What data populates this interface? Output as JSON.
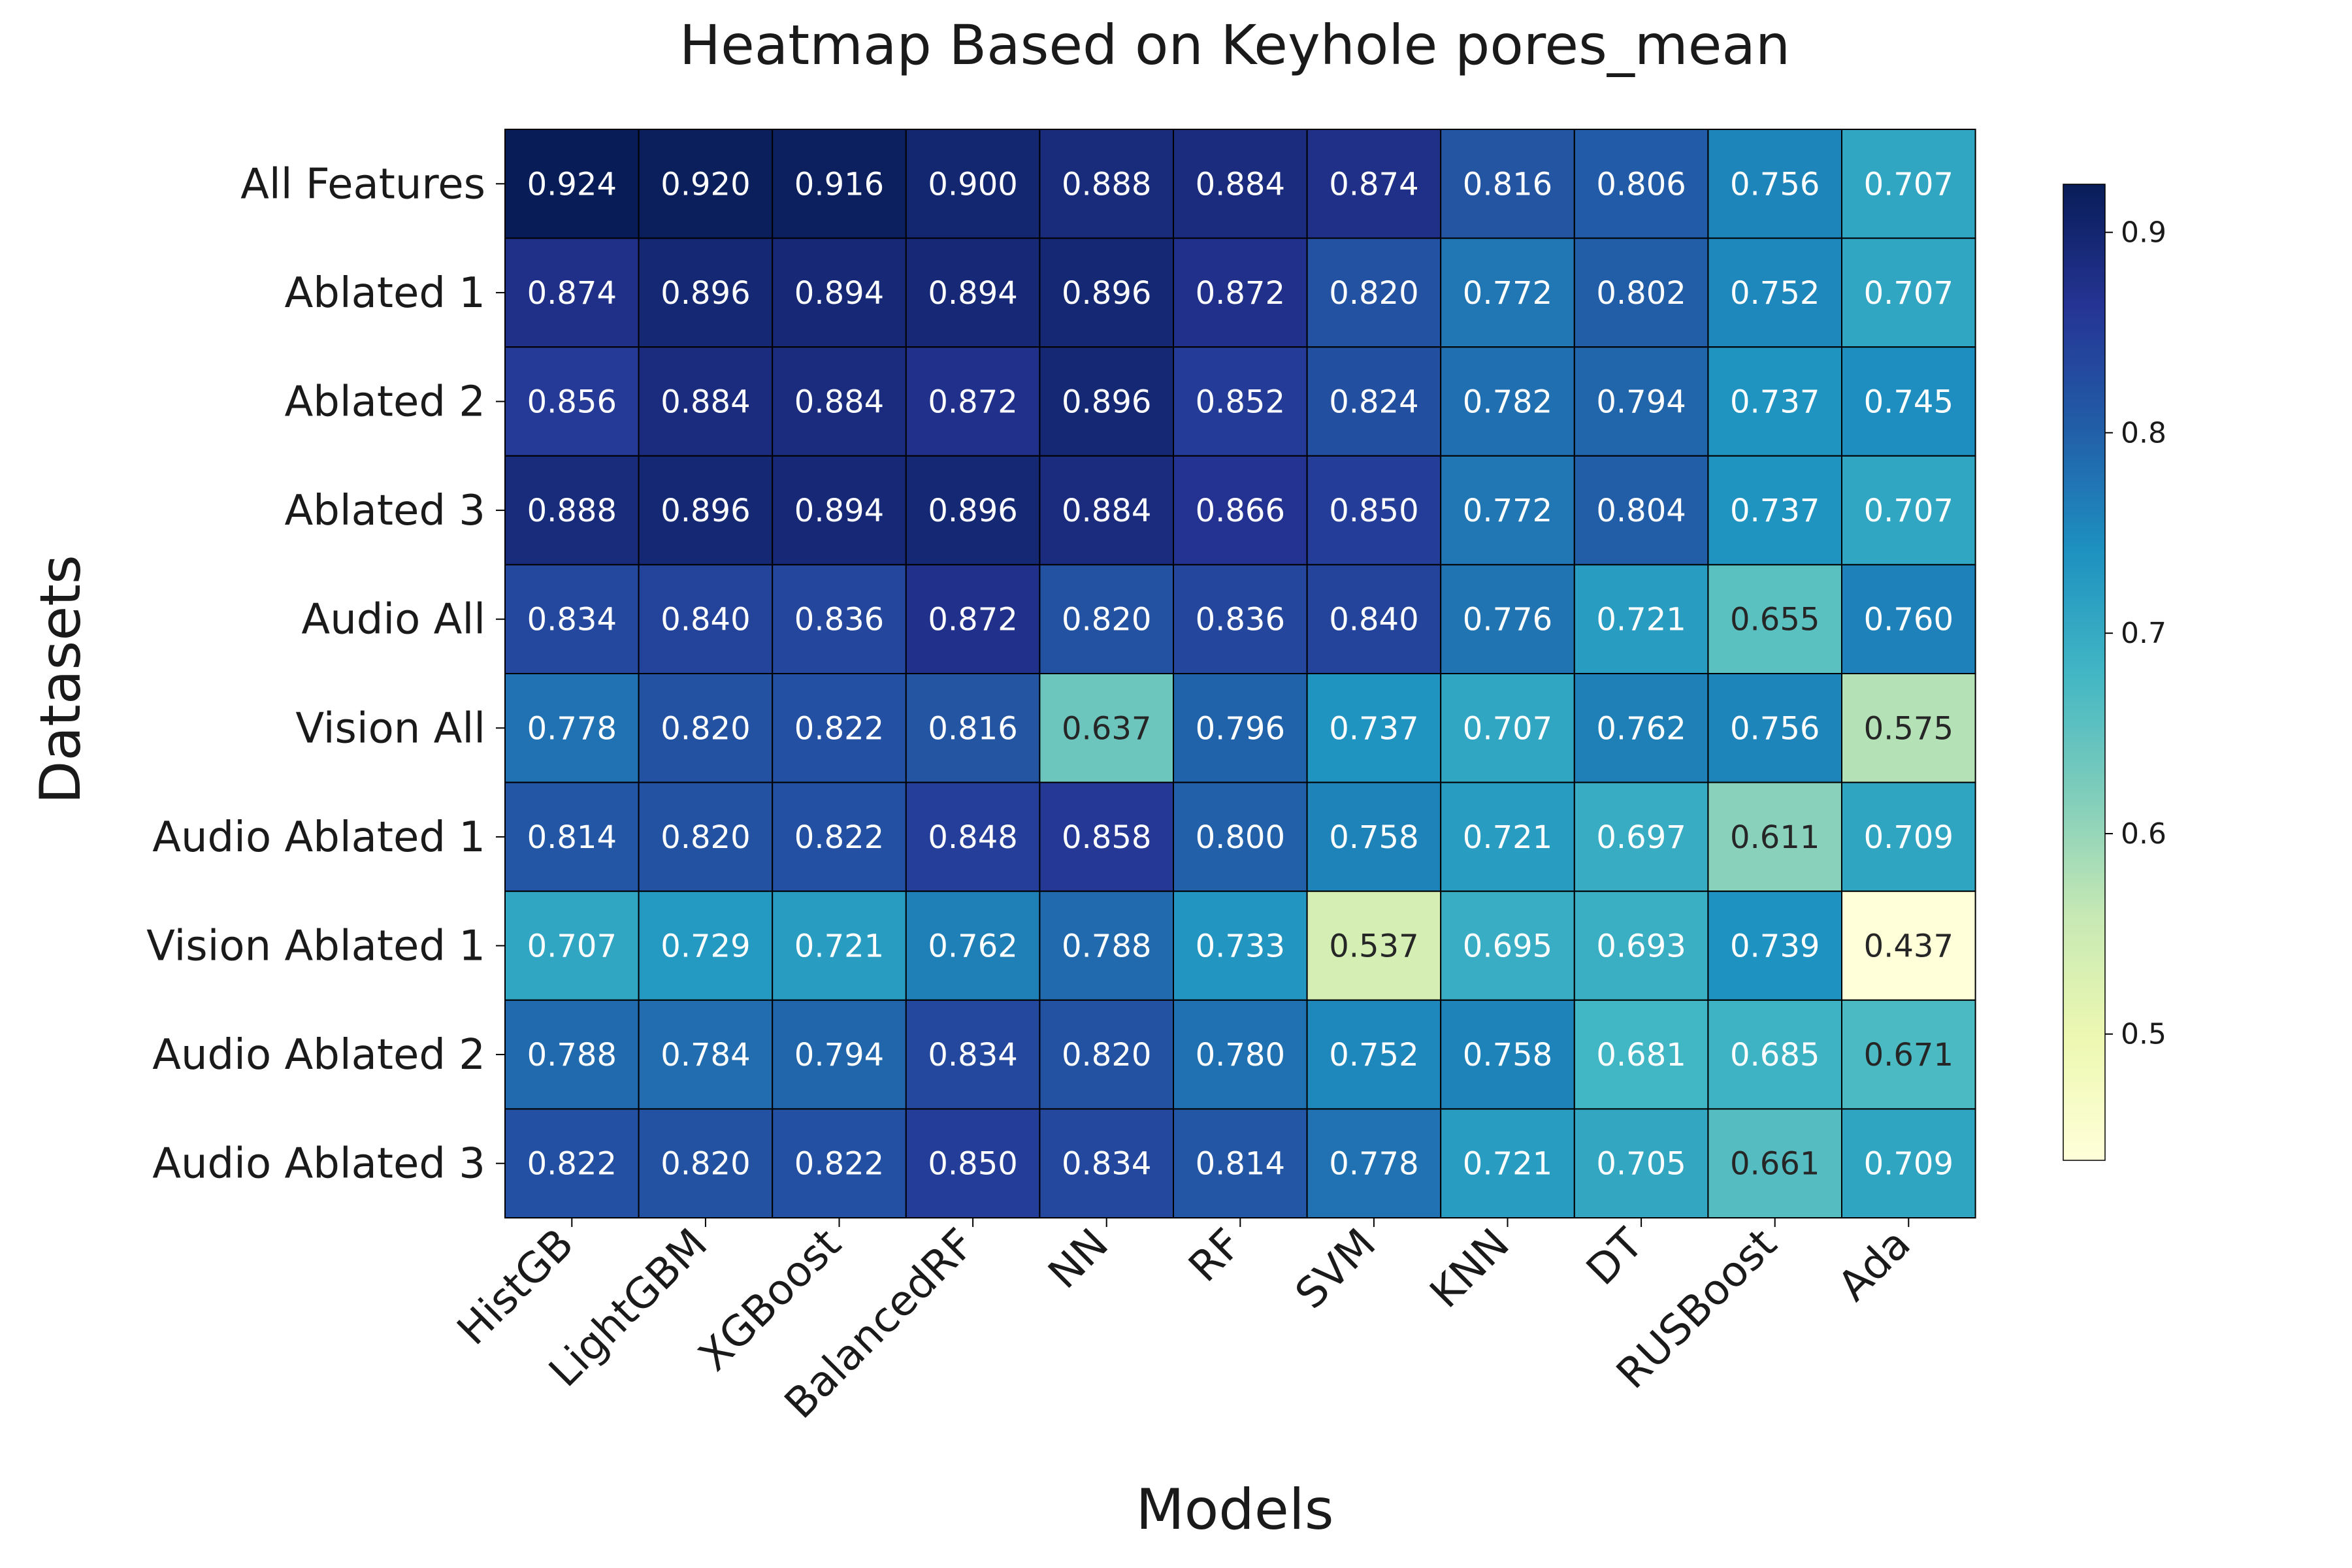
{
  "chart_data": {
    "type": "heatmap",
    "title": "Heatmap Based on Keyhole pores_mean",
    "xlabel": "Models",
    "ylabel": "Datasets",
    "x_categories": [
      "HistGB",
      "LightGBM",
      "XGBoost",
      "BalancedRF",
      "NN",
      "RF",
      "SVM",
      "KNN",
      "DT",
      "RUSBoost",
      "Ada"
    ],
    "y_categories": [
      "All Features",
      "Ablated 1",
      "Ablated 2",
      "Ablated 3",
      "Audio All",
      "Vision All",
      "Audio Ablated 1",
      "Vision Ablated 1",
      "Audio Ablated 2",
      "Audio Ablated 3"
    ],
    "values": [
      [
        0.924,
        0.92,
        0.916,
        0.9,
        0.888,
        0.884,
        0.874,
        0.816,
        0.806,
        0.756,
        0.707
      ],
      [
        0.874,
        0.896,
        0.894,
        0.894,
        0.896,
        0.872,
        0.82,
        0.772,
        0.802,
        0.752,
        0.707
      ],
      [
        0.856,
        0.884,
        0.884,
        0.872,
        0.896,
        0.852,
        0.824,
        0.782,
        0.794,
        0.737,
        0.745
      ],
      [
        0.888,
        0.896,
        0.894,
        0.896,
        0.884,
        0.866,
        0.85,
        0.772,
        0.804,
        0.737,
        0.707
      ],
      [
        0.834,
        0.84,
        0.836,
        0.872,
        0.82,
        0.836,
        0.84,
        0.776,
        0.721,
        0.655,
        0.76
      ],
      [
        0.778,
        0.82,
        0.822,
        0.816,
        0.637,
        0.796,
        0.737,
        0.707,
        0.762,
        0.756,
        0.575
      ],
      [
        0.814,
        0.82,
        0.822,
        0.848,
        0.858,
        0.8,
        0.758,
        0.721,
        0.697,
        0.611,
        0.709
      ],
      [
        0.707,
        0.729,
        0.721,
        0.762,
        0.788,
        0.733,
        0.537,
        0.695,
        0.693,
        0.739,
        0.437
      ],
      [
        0.788,
        0.784,
        0.794,
        0.834,
        0.82,
        0.78,
        0.752,
        0.758,
        0.681,
        0.685,
        0.671
      ],
      [
        0.822,
        0.82,
        0.822,
        0.85,
        0.834,
        0.814,
        0.778,
        0.721,
        0.705,
        0.661,
        0.709
      ]
    ],
    "value_format": "3 decimals",
    "colormap": "YlGnBu",
    "vmin": 0.437,
    "vmax": 0.924,
    "colorbar": {
      "ticks": [
        0.5,
        0.6,
        0.7,
        0.8,
        0.9
      ]
    },
    "colors": {
      "colormap_stops": [
        "#ffffd9",
        "#edf8b1",
        "#c7e9b4",
        "#7fcdbb",
        "#41b6c4",
        "#1d91c0",
        "#225ea8",
        "#253494",
        "#081d58"
      ],
      "text_dark": "#262626",
      "text_light": "#ffffff",
      "cell_border": "#000000"
    }
  }
}
